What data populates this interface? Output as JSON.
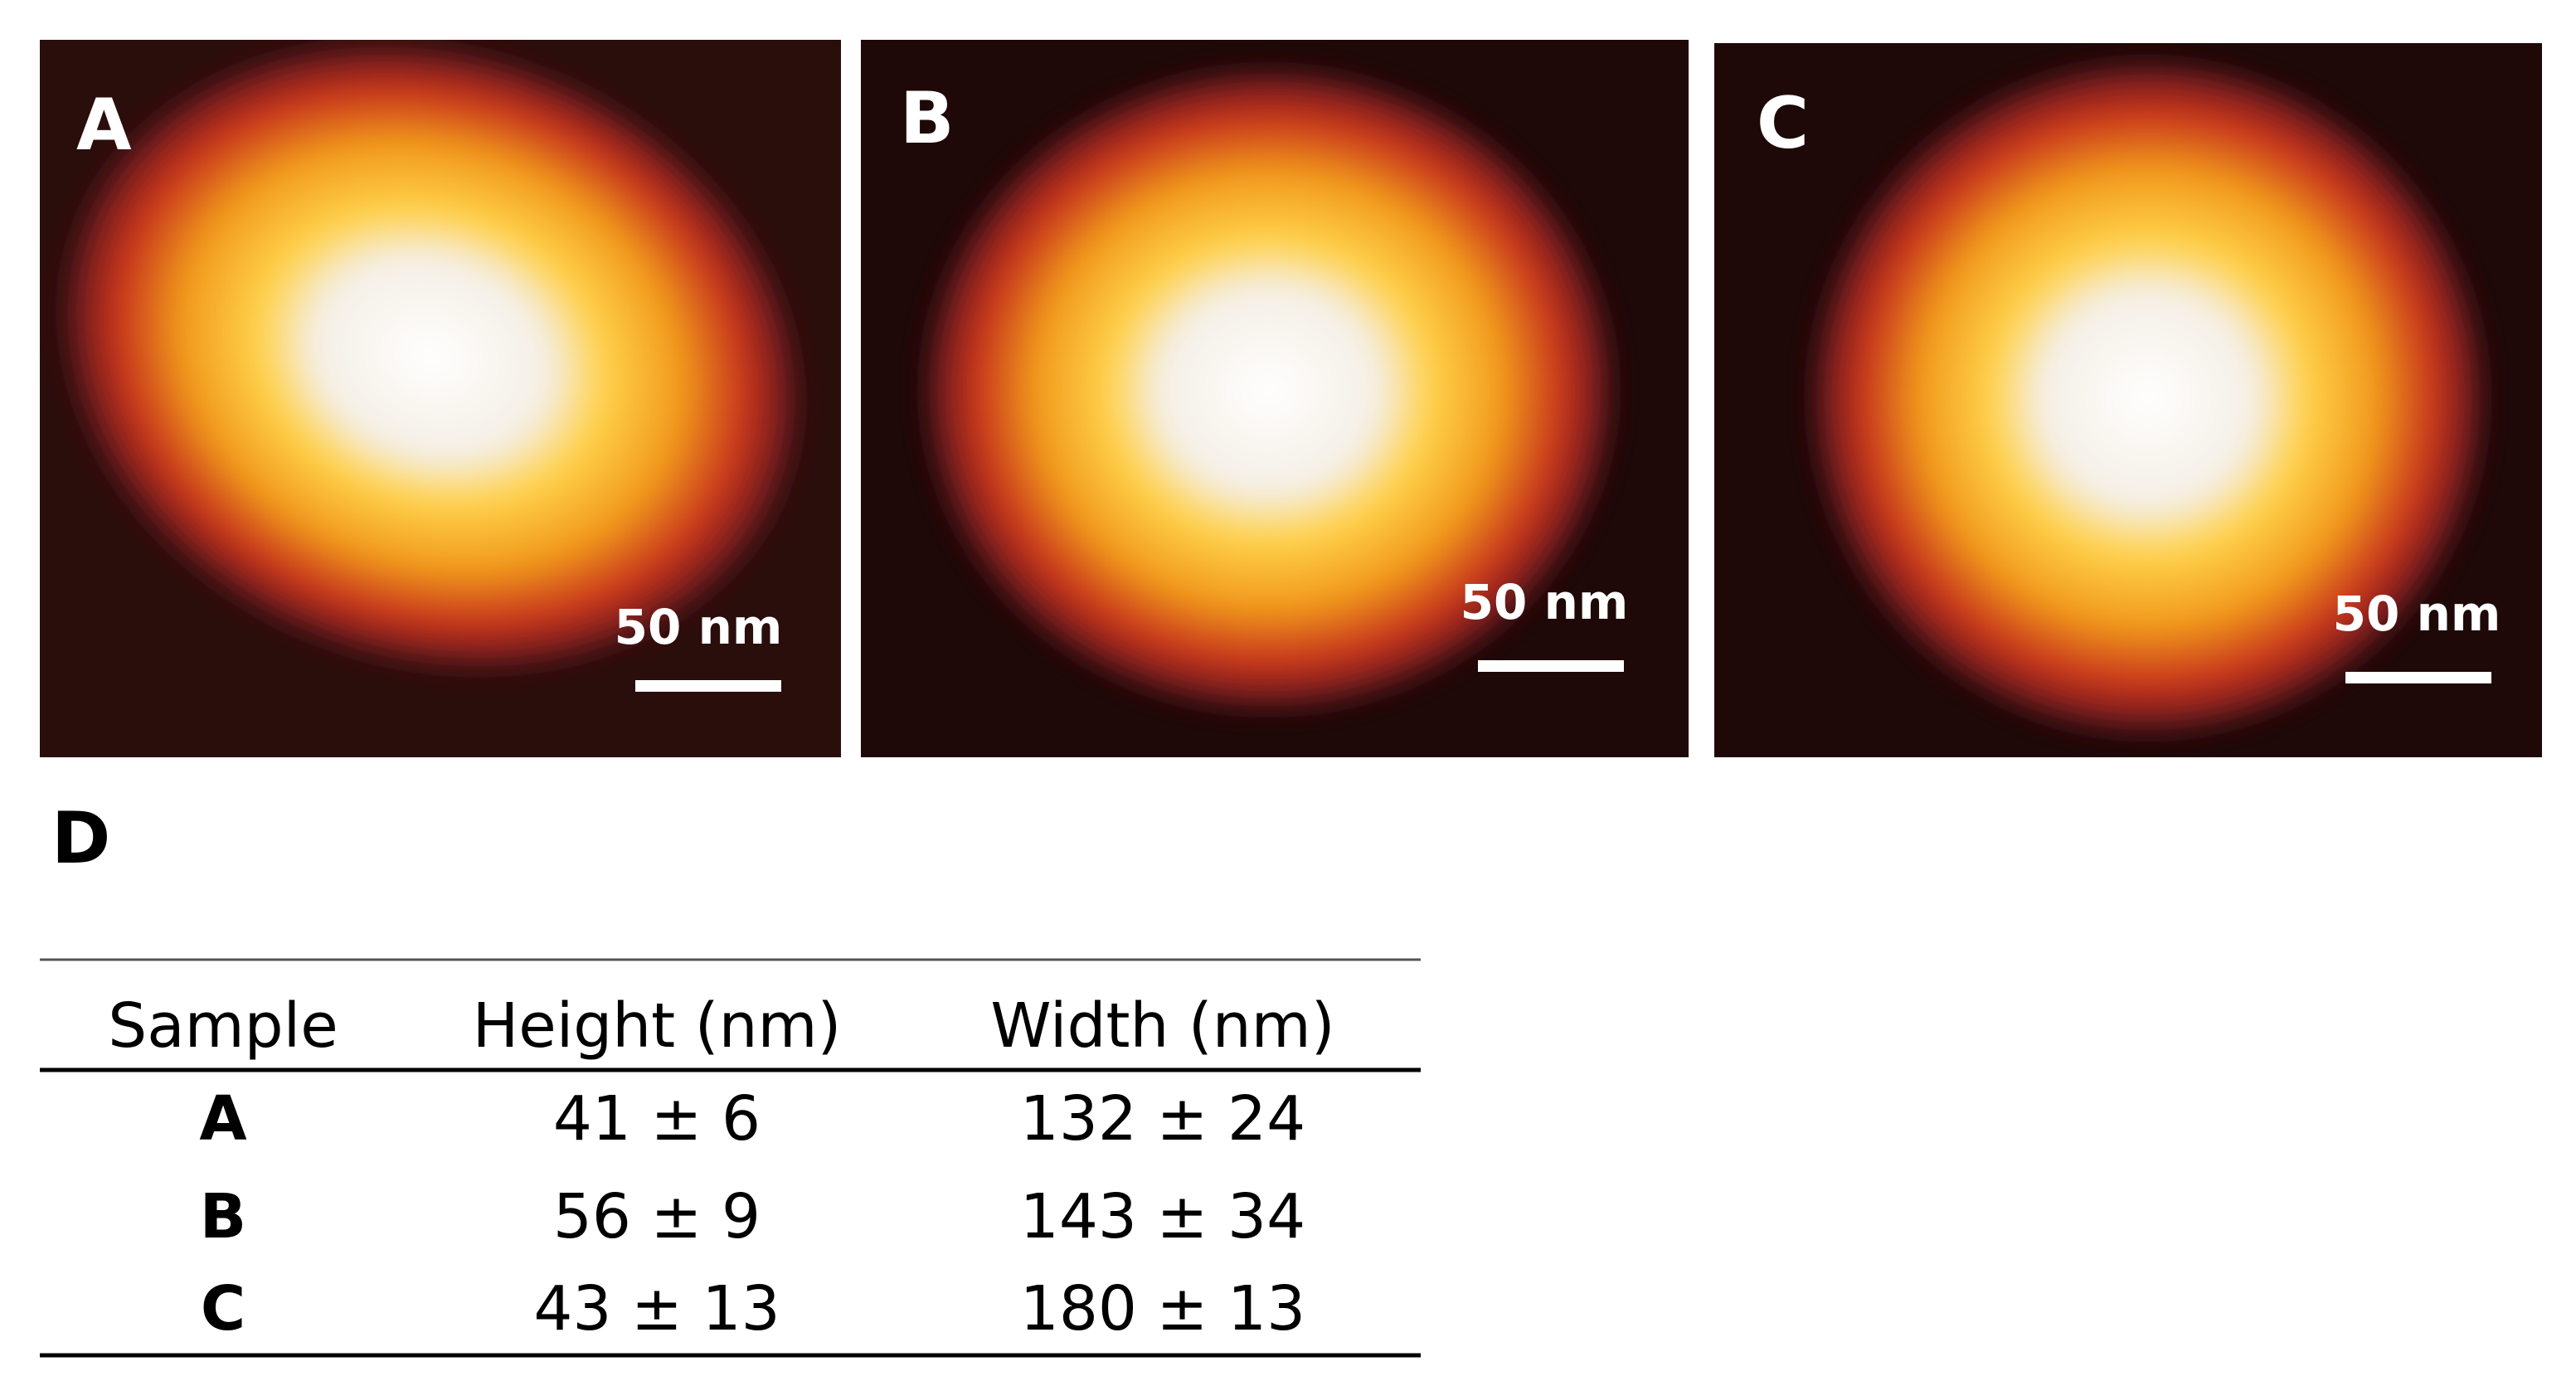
{
  "panels": [
    {
      "label": "A",
      "scale_bar": "50 nm"
    },
    {
      "label": "B",
      "scale_bar": "50 nm"
    },
    {
      "label": "C",
      "scale_bar": "50 nm"
    }
  ],
  "table": {
    "label": "D",
    "header": [
      "Sample",
      "Height (nm)",
      "Width (nm)"
    ],
    "rows": [
      [
        "A",
        "41 ± 6",
        "132 ± 24"
      ],
      [
        "B",
        "56 ± 9",
        "143 ± 34"
      ],
      [
        "C",
        "43 ± 13",
        "180 ± 13"
      ]
    ]
  }
}
